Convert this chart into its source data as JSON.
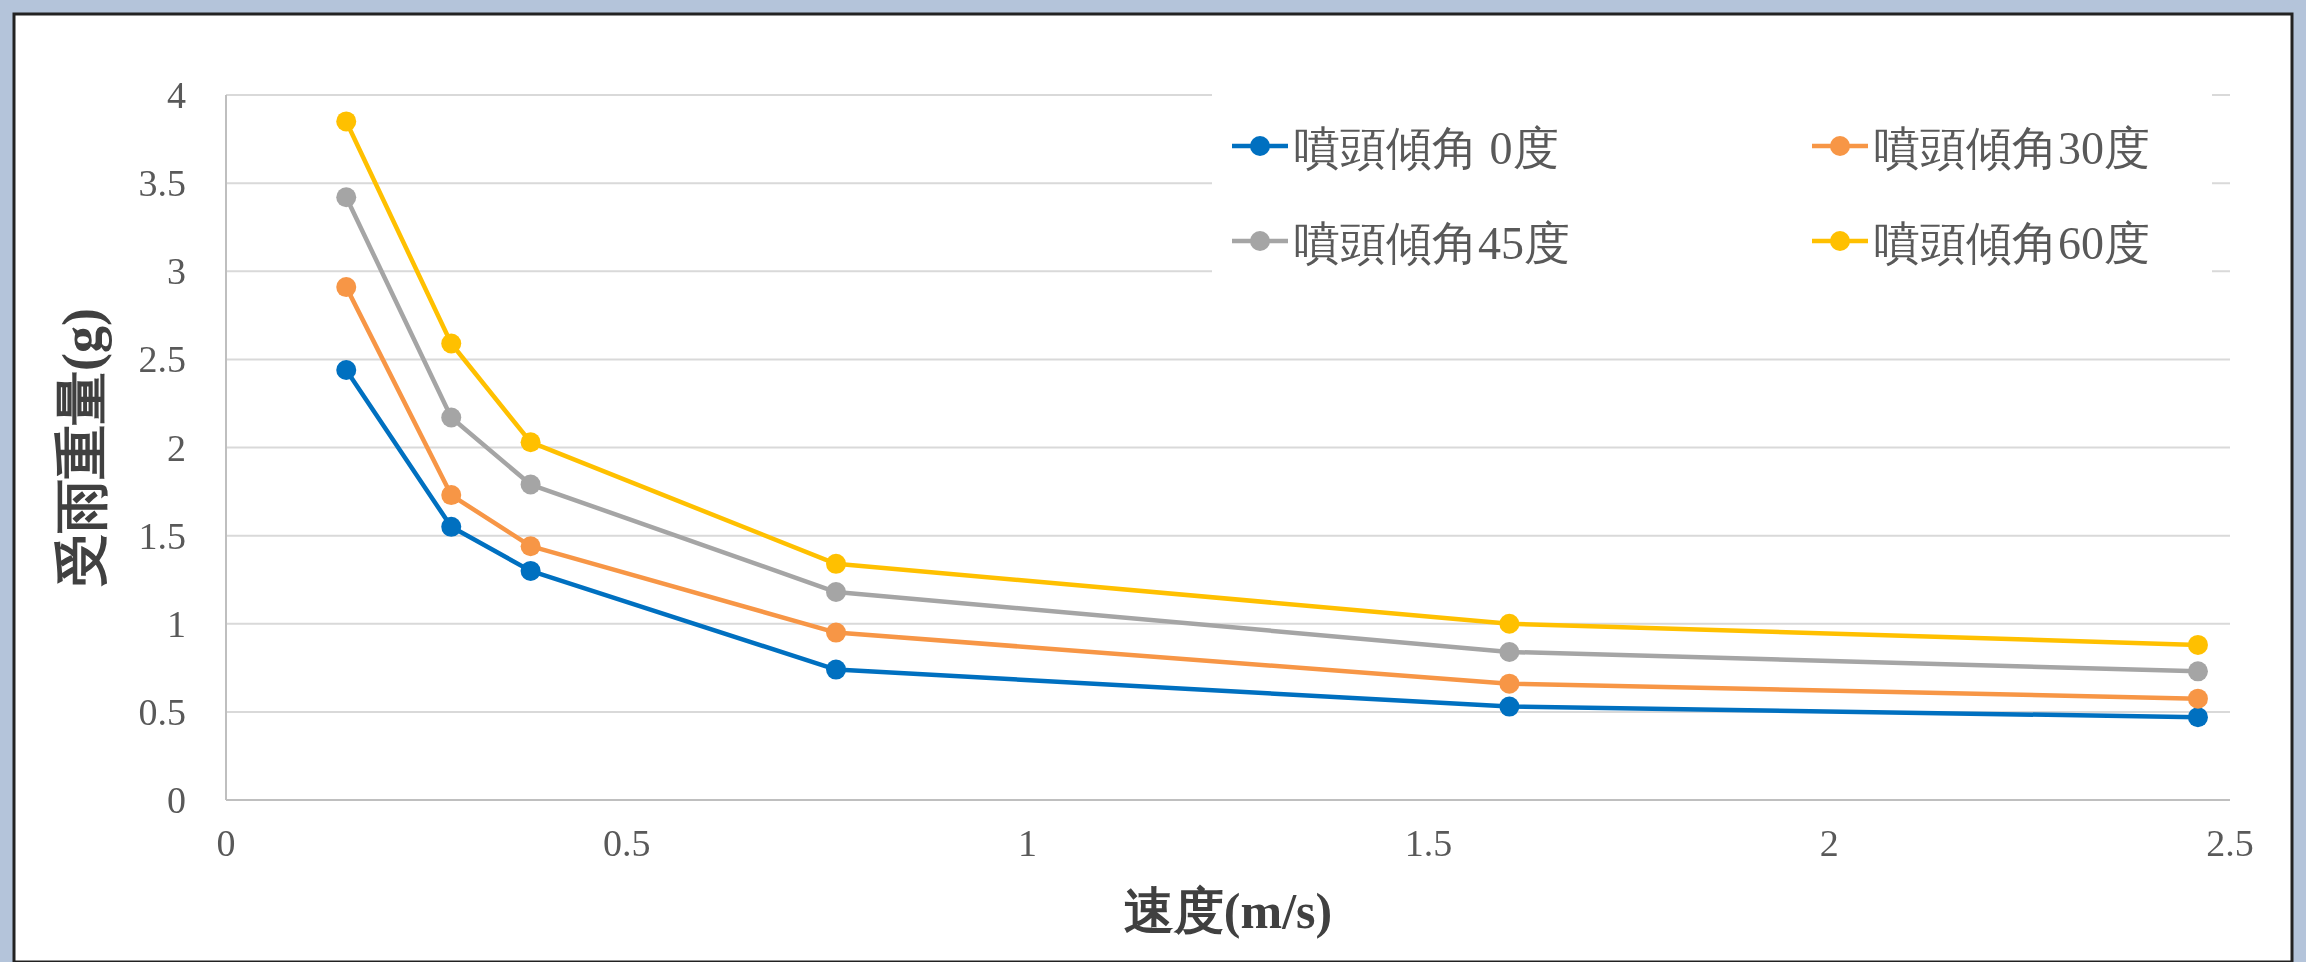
{
  "chart_data": {
    "type": "line",
    "xlabel": "速度(m/s)",
    "ylabel": "受雨重量(g)",
    "x": [
      0.15,
      0.281,
      0.38,
      0.761,
      1.601,
      2.46
    ],
    "series": [
      {
        "name": "噴頭傾角 0度",
        "color": "#0070c0",
        "values": [
          2.44,
          1.55,
          1.3,
          0.74,
          0.53,
          0.47
        ]
      },
      {
        "name": "噴頭傾角30度",
        "color": "#f79646",
        "values": [
          2.91,
          1.73,
          1.44,
          0.95,
          0.66,
          0.575
        ]
      },
      {
        "name": "噴頭傾角45度",
        "color": "#a5a5a5",
        "values": [
          3.42,
          2.17,
          1.79,
          1.18,
          0.84,
          0.73
        ]
      },
      {
        "name": "噴頭傾角60度",
        "color": "#ffc000",
        "values": [
          3.85,
          2.59,
          2.03,
          1.34,
          1.0,
          0.88
        ]
      }
    ],
    "xlim": [
      0,
      2.5
    ],
    "xticks": [
      0,
      0.5,
      1,
      1.5,
      2,
      2.5
    ],
    "ylim": [
      0,
      4
    ],
    "yticks": [
      0,
      0.5,
      1,
      1.5,
      2,
      2.5,
      3,
      3.5,
      4
    ],
    "grid": "y",
    "legend": "top right",
    "marker": "circle",
    "line_style": "solid"
  }
}
